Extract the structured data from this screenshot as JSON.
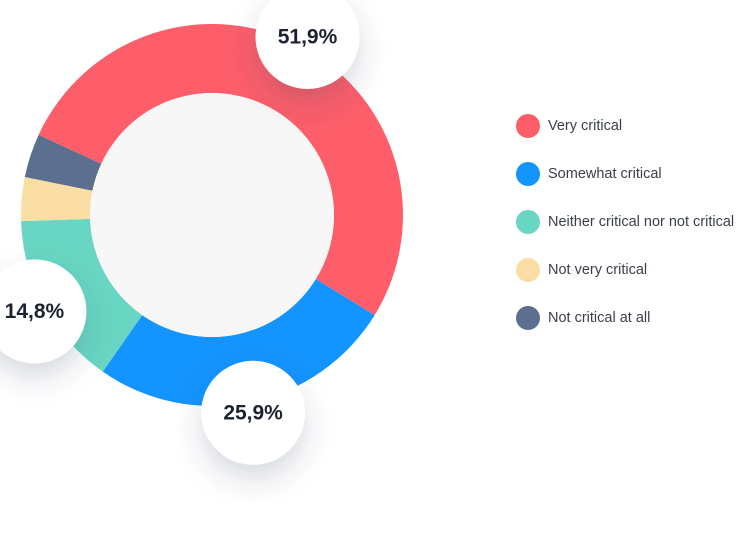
{
  "chart_data": {
    "type": "pie",
    "style": "donut",
    "categories": [
      "Very critical",
      "Somewhat critical",
      "Neither critical nor not critical",
      "Not very critical",
      "Not critical at all"
    ],
    "values": [
      51.9,
      25.9,
      14.8,
      3.7,
      3.7
    ],
    "colors": [
      "#fd5e6a",
      "#1494fe",
      "#68d6c2",
      "#fbdea4",
      "#5c6f8f"
    ],
    "data_labels": [
      {
        "series_index": 0,
        "text": "51,9%"
      },
      {
        "series_index": 1,
        "text": "25,9%"
      },
      {
        "series_index": 2,
        "text": "14,8%"
      }
    ],
    "legend_position": "right"
  }
}
